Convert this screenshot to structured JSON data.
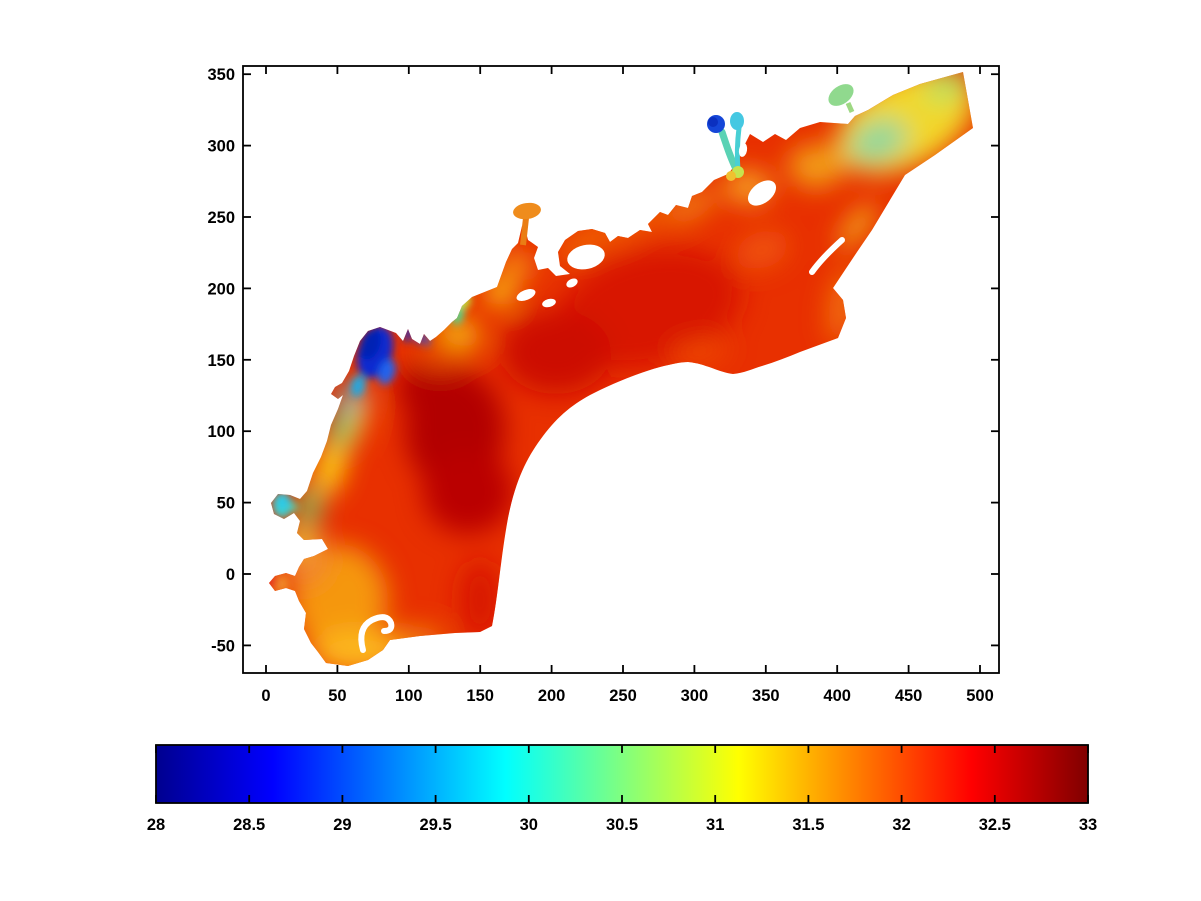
{
  "chart_data": {
    "type": "heatmap",
    "title": "",
    "xlabel": "",
    "ylabel": "",
    "xlim": [
      -16,
      513
    ],
    "ylim": [
      -69,
      356
    ],
    "grid": false,
    "legend": "none",
    "x_ticks": [
      0,
      50,
      100,
      150,
      200,
      250,
      300,
      350,
      400,
      450,
      500
    ],
    "x_tick_labels": [
      "0",
      "50",
      "100",
      "150",
      "200",
      "250",
      "300",
      "350",
      "400",
      "450",
      "500"
    ],
    "y_ticks": [
      -50,
      0,
      50,
      100,
      150,
      200,
      250,
      300,
      350
    ],
    "y_tick_labels": [
      "-50",
      "0",
      "50",
      "100",
      "150",
      "200",
      "250",
      "300",
      "350"
    ],
    "axis_color": "#000000",
    "background_color": "#ffffff",
    "colorbar": {
      "orientation": "horizontal",
      "position": "below-plot",
      "colormap": "jet",
      "range": [
        28,
        33
      ],
      "ticks": [
        28,
        28.5,
        29,
        29.5,
        30,
        30.5,
        31,
        31.5,
        32,
        32.5,
        33
      ],
      "tick_labels": [
        "28",
        "28.5",
        "29",
        "29.5",
        "30",
        "30.5",
        "31",
        "31.5",
        "32",
        "32.5",
        "33"
      ],
      "stops": [
        {
          "offset": 0.0,
          "color": "#00008f"
        },
        {
          "offset": 0.125,
          "color": "#0000ff"
        },
        {
          "offset": 0.375,
          "color": "#00ffff"
        },
        {
          "offset": 0.625,
          "color": "#ffff00"
        },
        {
          "offset": 0.875,
          "color": "#ff0000"
        },
        {
          "offset": 1.0,
          "color": "#800000"
        }
      ]
    },
    "field_description": "Scalar field (salinity-like, jet colormap 28-33) over an irregular coastal bay/estuary domain. Mostly red-orange (31.5-32.5) with dark-red maxima in the west and central basins, yellow-green fringes along the northwest shore and in the northeast strait, orange in the southwest lobe, and low-salinity blue plumes at two river inlets.",
    "sample_points": [
      {
        "x": 75,
        "y": 160,
        "value": 28.3
      },
      {
        "x": 80,
        "y": 150,
        "value": 29.3
      },
      {
        "x": 62,
        "y": 128,
        "value": 29.9
      },
      {
        "x": 52,
        "y": 105,
        "value": 30.4
      },
      {
        "x": 45,
        "y": 78,
        "value": 31.1
      },
      {
        "x": 30,
        "y": 48,
        "value": 30.6
      },
      {
        "x": 10,
        "y": 50,
        "value": 29.9
      },
      {
        "x": 28,
        "y": 25,
        "value": 31.2
      },
      {
        "x": 5,
        "y": -5,
        "value": 32.3
      },
      {
        "x": 25,
        "y": -15,
        "value": 31.6
      },
      {
        "x": 50,
        "y": -52,
        "value": 31.4
      },
      {
        "x": 90,
        "y": -30,
        "value": 32.1
      },
      {
        "x": 115,
        "y": 95,
        "value": 32.9
      },
      {
        "x": 140,
        "y": 60,
        "value": 32.7
      },
      {
        "x": 120,
        "y": 10,
        "value": 32.4
      },
      {
        "x": 185,
        "y": 130,
        "value": 32.5
      },
      {
        "x": 160,
        "y": 180,
        "value": 31.2
      },
      {
        "x": 180,
        "y": 255,
        "value": 31.6
      },
      {
        "x": 225,
        "y": 220,
        "value": 32.2
      },
      {
        "x": 270,
        "y": 195,
        "value": 32.7
      },
      {
        "x": 310,
        "y": 230,
        "value": 32.4
      },
      {
        "x": 330,
        "y": 318,
        "value": 28.4
      },
      {
        "x": 333,
        "y": 305,
        "value": 29.9
      },
      {
        "x": 335,
        "y": 290,
        "value": 30.8
      },
      {
        "x": 355,
        "y": 250,
        "value": 32.0
      },
      {
        "x": 400,
        "y": 335,
        "value": 30.5
      },
      {
        "x": 420,
        "y": 290,
        "value": 30.4
      },
      {
        "x": 465,
        "y": 330,
        "value": 30.9
      },
      {
        "x": 445,
        "y": 310,
        "value": 31.1
      },
      {
        "x": 410,
        "y": 245,
        "value": 31.3
      },
      {
        "x": 385,
        "y": 215,
        "value": 31.8
      },
      {
        "x": 300,
        "y": 120,
        "value": 32.3
      },
      {
        "x": 200,
        "y": 30,
        "value": 32.5
      }
    ],
    "extremes": {
      "min_regions": [
        {
          "x": 75,
          "y": 160,
          "value": 28.2,
          "note": "dark blue river plume, northwest shore"
        },
        {
          "x": 328,
          "y": 316,
          "value": 28.4,
          "note": "dark blue spot, northern inlet"
        }
      ],
      "max_regions": [
        {
          "x": 120,
          "y": 95,
          "value": 33.0,
          "note": "dark red patch, west basin"
        },
        {
          "x": 255,
          "y": 195,
          "value": 32.8,
          "note": "dark red patch, central basin"
        }
      ]
    }
  }
}
